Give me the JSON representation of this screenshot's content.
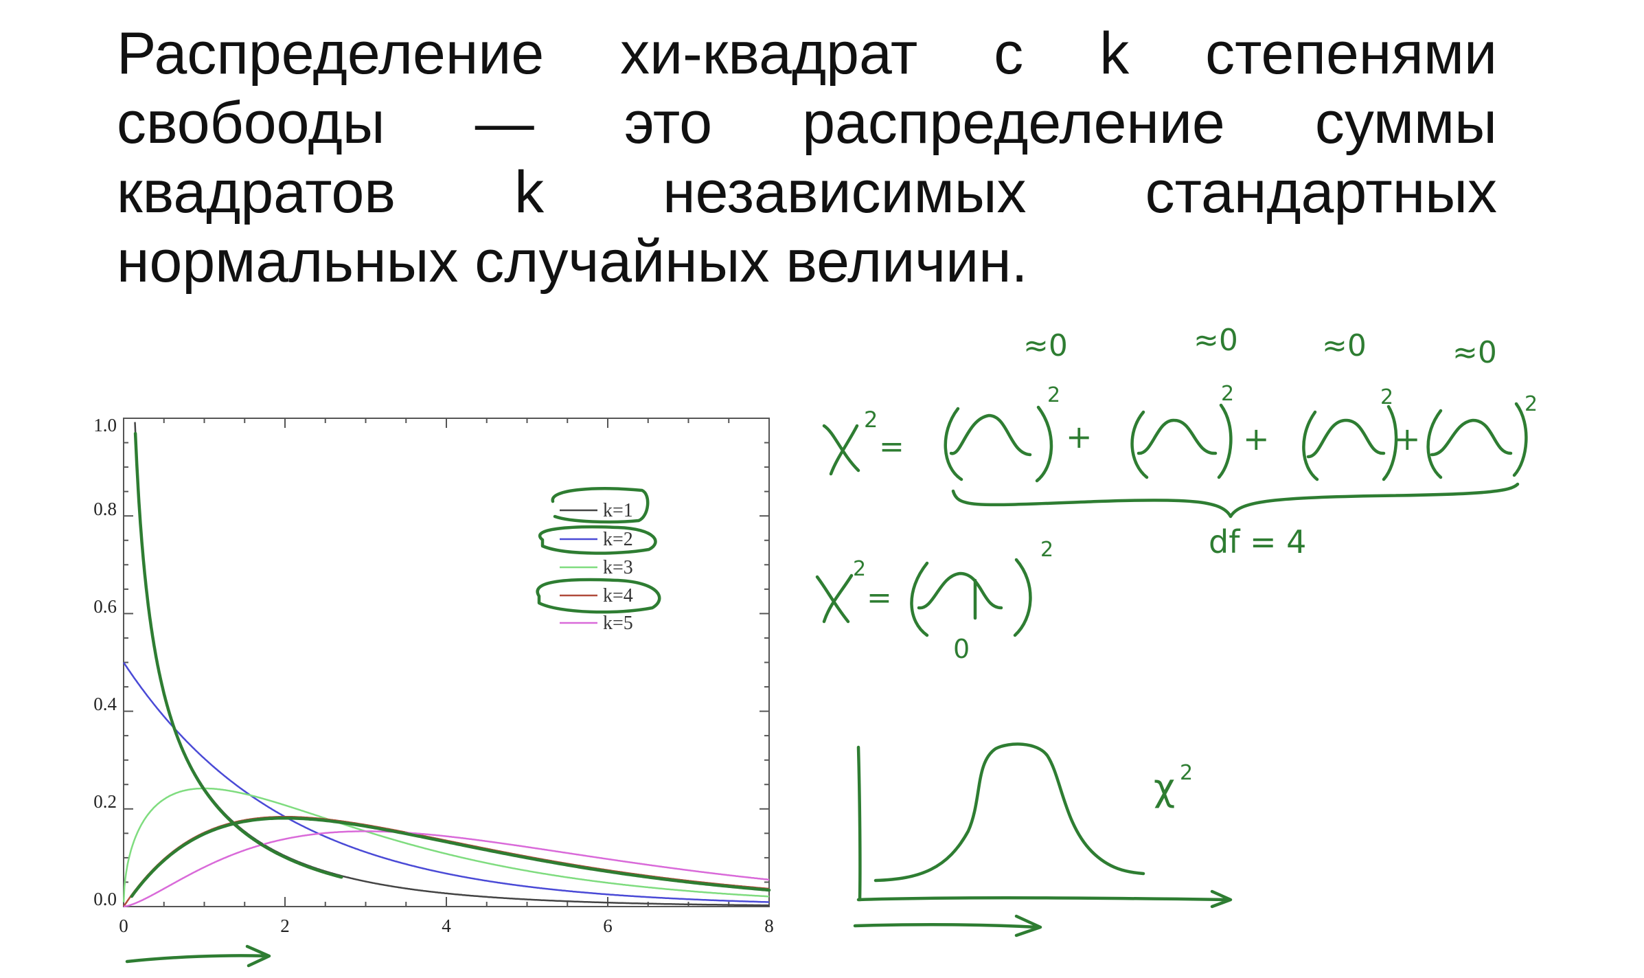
{
  "slide": {
    "text": "Распределение хи-квадрат с k степенями свобооды — это распределение суммы квадратов k независимых стандартных нормальных случайных величин."
  },
  "chart_data": {
    "type": "line",
    "xlim": [
      0,
      8
    ],
    "ylim": [
      0,
      1.0
    ],
    "x_ticks": [
      "0",
      "2",
      "4",
      "6",
      "8"
    ],
    "y_ticks": [
      "0.0",
      "0.2",
      "0.4",
      "0.6",
      "0.8",
      "1.0"
    ],
    "grid": false,
    "legend_position": "upper-right",
    "series": [
      {
        "name": "k=1",
        "k": 1,
        "color": "#444444"
      },
      {
        "name": "k=2",
        "k": 2,
        "color": "#4a4ad6"
      },
      {
        "name": "k=3",
        "k": 3,
        "color": "#7fdc7f"
      },
      {
        "name": "k=4",
        "k": 4,
        "color": "#b04a3a"
      },
      {
        "name": "k=5",
        "k": 5,
        "color": "#d96ad9"
      }
    ]
  },
  "annotations": {
    "approx_zero": [
      "≈0",
      "≈0",
      "≈0",
      "≈0"
    ],
    "chi_square_symbol": "χ",
    "squared": "2",
    "equals": "=",
    "plus": "+",
    "df_label": "df = 4",
    "zero_label": "0",
    "ink_color": "#2e7d32"
  }
}
